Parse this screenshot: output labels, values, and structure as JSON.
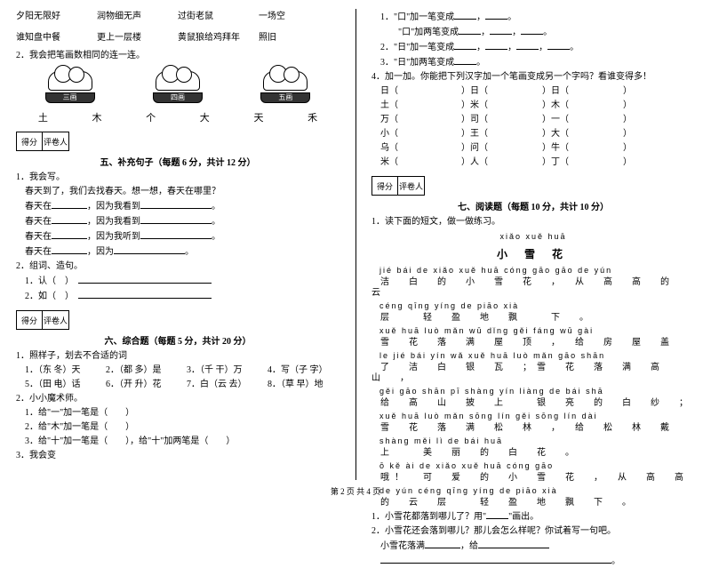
{
  "left": {
    "row1": [
      "夕阳无限好",
      "润物细无声",
      "过街老鼠",
      "一场空"
    ],
    "row2": [
      "谁知盘中餐",
      "更上一层楼",
      "黄鼠狼给鸡拜年",
      "照旧"
    ],
    "q2": "2．我会把笔画数相同的连一连。",
    "plates": [
      "三画",
      "四画",
      "五画"
    ],
    "chars": [
      "土",
      "木",
      "个",
      "大",
      "天",
      "禾"
    ],
    "scoreLabels": [
      "得分",
      "评卷人"
    ],
    "sec5": "五、补充句子（每题 6 分，共计 12 分）",
    "s5_1": "1．我会写。",
    "s5_lines": [
      "春天到了，我们去找春天。想一想，春天在哪里？",
      "春天在____________，因为我看到____________________。",
      "春天在____________，因为我看到____________________。",
      "春天在____________，因为我听到____________________。",
      "春天在____________，因为________________________。"
    ],
    "s5_2": "2．组词、造句。",
    "s5_2a": "1．认（　）　____________________________________",
    "s5_2b": "2．如（　）　____________________________________",
    "sec6": "六、综合题（每题 5 分，共计 20 分）",
    "s6_1": "1．照样子，划去不合适的词",
    "s6_items": [
      "1．（东 冬）天",
      "2．（都 多）是",
      "3．（千 干）万",
      "4．写（子 字）",
      "5．（田 电）话",
      "6．（开 升）花",
      "7．白（云 去）",
      "8．（草 早）地"
    ],
    "s6_2": "2．小小魔术师。",
    "s6_2a": "1．给\"一\"加一笔是（　　）",
    "s6_2b": "2．给\"木\"加一笔是（　　）",
    "s6_2c": "3．给\"十\"加一笔是（　　），给\"十\"加两笔是（　　）",
    "s6_3": "3．我会变"
  },
  "right": {
    "r1": "1．\"口\"加一笔变成_______，_______。",
    "r2": "　　\"口\"加两笔变成_______，_______，_______。",
    "r3": "2．\"日\"加一笔变成_______，_______，_______，_______。",
    "r4": "3．\"日\"加两笔变成_______。",
    "r5": "4．加一加。你能把下列汉字加一个笔画变成另一个字吗？看谁变得多！",
    "pairs": [
      [
        "日（",
        "）日（",
        "）日（",
        "）"
      ],
      [
        "土（",
        "）米（",
        "）木（",
        "）"
      ],
      [
        "万（",
        "）司（",
        "）一（",
        "）"
      ],
      [
        "小（",
        "）王（",
        "）大（",
        "）"
      ],
      [
        "乌（",
        "）问（",
        "）牛（",
        "）"
      ],
      [
        "米（",
        "）人（",
        "）丁（",
        "）"
      ]
    ],
    "scoreLabels": [
      "得分",
      "评卷人"
    ],
    "sec7": "七、阅读题（每题 10 分，共计 10 分）",
    "s7_1": "1．读下面的短文，做一做练习。",
    "title_py": "xiǎo  xuě  huā",
    "title": "小 雪 花",
    "poem": [
      {
        "py": "jié  bái  de  xiǎo  xuě  huā  cóng  gāo  gāo  de  yún",
        "hz": "洁　白　的　小　雪　花　，　从　高　高　的　云"
      },
      {
        "py": "céng  qīng  yíng  de  piāo  xià",
        "hz": "层　　轻　盈　地　飘　　下　。"
      },
      {
        "py": "xuě  huā  luò  mǎn  wū  dǐng  gěi  fáng  wū  gài",
        "hz": "雪　花　落　满　屋　顶　，　给　房　屋　盖"
      },
      {
        "py": "le  jié  bái  yín  wǎ  xuě  huā  luò  mǎn  gāo  shān",
        "hz": "了　洁　白　银　瓦　；雪　花　落　满　高　山　，"
      },
      {
        "py": "gěi  gāo  shān  pī  shàng  yín  liàng  de  bái  shā",
        "hz": "给　高　山　披　上　　银　亮　的　白　纱　；"
      },
      {
        "py": "xuě  huā  luò  mǎn  sōng  lín  gěi sōng  lín  dài",
        "hz": "雪　花　落　满　松　林　，　给　松　林　戴"
      },
      {
        "py": "shàng  měi  lì  de  bái  huā",
        "hz": "上　　美　丽　的　白　花　。"
      },
      {
        "py": "ō  kě  ài  de  xiǎo  xuě  huā  cóng  gāo",
        "hz": "哦！　可　爱　的　小　雪　花　，　从　高　高"
      },
      {
        "py": "de  yún  céng  qīng  yíng  de  piāo  xià",
        "hz": "的　云　层　　轻　盈　地　飘　下　。"
      }
    ],
    "q1": "1．小雪花都落到哪儿了？用\"______\"画出。",
    "q2": "2．小雪花还会落到哪儿？那儿会怎么样呢？你试着写一句吧。",
    "q2line": "小雪花落满____________，给____________________",
    "q2line2": "____________________________________。"
  },
  "footer": "第 2 页  共 4 页"
}
